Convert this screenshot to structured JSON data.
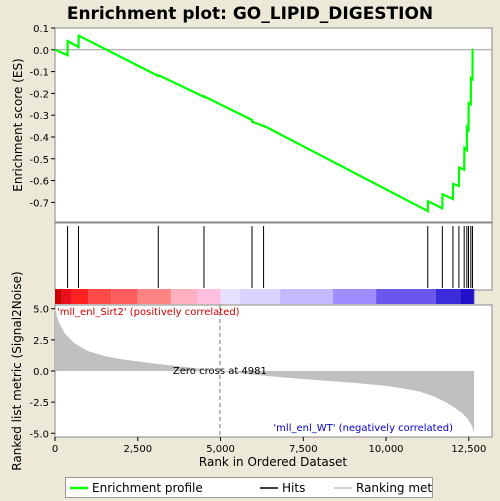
{
  "chart_data": {
    "type": "line",
    "title": "Enrichment plot: GO_LIPID_DIGESTION",
    "xlabel": "Rank in Ordered Dataset",
    "x_ticks": [
      0,
      2500,
      5000,
      7500,
      10000,
      12500
    ],
    "x_tick_labels": [
      "0",
      "2,500",
      "5,000",
      "7,500",
      "10,000",
      "12,500"
    ],
    "xlim": [
      0,
      13200
    ],
    "es_panel": {
      "ylabel": "Enrichment score (ES)",
      "ylim": [
        -0.79,
        0.1
      ],
      "y_ticks": [
        0.1,
        0.0,
        -0.1,
        -0.2,
        -0.3,
        -0.4,
        -0.5,
        -0.6,
        -0.7
      ],
      "y_tick_labels": [
        "0.1",
        "0.0",
        "-0.1",
        "-0.2",
        "-0.3",
        "-0.4",
        "-0.5",
        "-0.6",
        "-0.7"
      ],
      "series": [
        {
          "name": "Enrichment profile",
          "color": "#00ff00",
          "x": [
            0,
            380,
            385,
            710,
            715,
            3120,
            3125,
            3180,
            4500,
            4505,
            5950,
            5955,
            6300,
            6305,
            11260,
            11265,
            11700,
            11705,
            12020,
            12025,
            12200,
            12205,
            12360,
            12365,
            12440,
            12445,
            12490,
            12495,
            12560,
            12565,
            12610,
            12615,
            12640
          ],
          "y": [
            0.0,
            -0.025,
            0.04,
            0.013,
            0.065,
            -0.12,
            -0.117,
            -0.12,
            -0.216,
            -0.214,
            -0.322,
            -0.33,
            -0.35,
            -0.348,
            -0.74,
            -0.695,
            -0.727,
            -0.663,
            -0.685,
            -0.615,
            -0.625,
            -0.54,
            -0.55,
            -0.45,
            -0.46,
            -0.355,
            -0.365,
            -0.245,
            -0.25,
            -0.13,
            -0.135,
            0.0,
            0.0
          ]
        }
      ]
    },
    "hits": {
      "name": "Hits",
      "positions": [
        380,
        710,
        3120,
        4500,
        5950,
        6300,
        11260,
        11700,
        12020,
        12200,
        12360,
        12440,
        12490,
        12560,
        12610
      ]
    },
    "rank_panel": {
      "ylabel": "Ranked list metric (Signal2Noise)",
      "ylim": [
        -5.3,
        5.3
      ],
      "y_ticks": [
        5.0,
        2.5,
        0.0,
        -2.5,
        -5.0
      ],
      "y_tick_labels": [
        "5.0",
        "2.5",
        "0.0",
        "-2.5",
        "-5.0"
      ],
      "series_name": "Ranking metric scores",
      "curve_x": [
        0,
        100,
        300,
        600,
        1000,
        1500,
        2000,
        3000,
        4000,
        4981,
        6000,
        7000,
        8000,
        9000,
        10000,
        10500,
        11000,
        11400,
        11800,
        12100,
        12300,
        12450,
        12550,
        12620,
        12660
      ],
      "curve_y": [
        5.0,
        4.0,
        3.0,
        2.2,
        1.6,
        1.2,
        0.95,
        0.6,
        0.3,
        0.0,
        -0.3,
        -0.55,
        -0.75,
        -0.95,
        -1.2,
        -1.4,
        -1.65,
        -2.0,
        -2.5,
        -3.0,
        -3.4,
        -3.8,
        -4.2,
        -4.6,
        -5.0
      ],
      "zero_cross": 4981,
      "zero_cross_label": "Zero cross at 4981",
      "positive_label": "'mll_enl_Sirt2' (positively correlated)",
      "negative_label": "'mll_enl_WT' (negatively correlated)",
      "positive_color": "#cc0000",
      "negative_color": "#0000cc"
    },
    "heatmap_bar": {
      "color_stops": [
        [
          0,
          "#cc0000"
        ],
        [
          200,
          "#e8101a"
        ],
        [
          500,
          "#ff2222"
        ],
        [
          1000,
          "#ff4a4a"
        ],
        [
          1700,
          "#ff5e5e"
        ],
        [
          2500,
          "#ff8585"
        ],
        [
          3500,
          "#ffb0c0"
        ],
        [
          4300,
          "#ffc0e0"
        ],
        [
          5000,
          "#e4e0ff"
        ],
        [
          5600,
          "#d8d4ff"
        ],
        [
          6800,
          "#c4b8ff"
        ],
        [
          8400,
          "#9d8dff"
        ],
        [
          9700,
          "#6a58ee"
        ],
        [
          11500,
          "#3a2cd8"
        ],
        [
          12250,
          "#2010c8"
        ],
        [
          12650,
          "#1a0aa0"
        ]
      ]
    },
    "legend": [
      {
        "label": "Enrichment profile",
        "color": "#00ff00"
      },
      {
        "label": "Hits",
        "color": "#000000"
      },
      {
        "label": "Ranking metric scores",
        "color": "#c0c0c0"
      }
    ]
  }
}
